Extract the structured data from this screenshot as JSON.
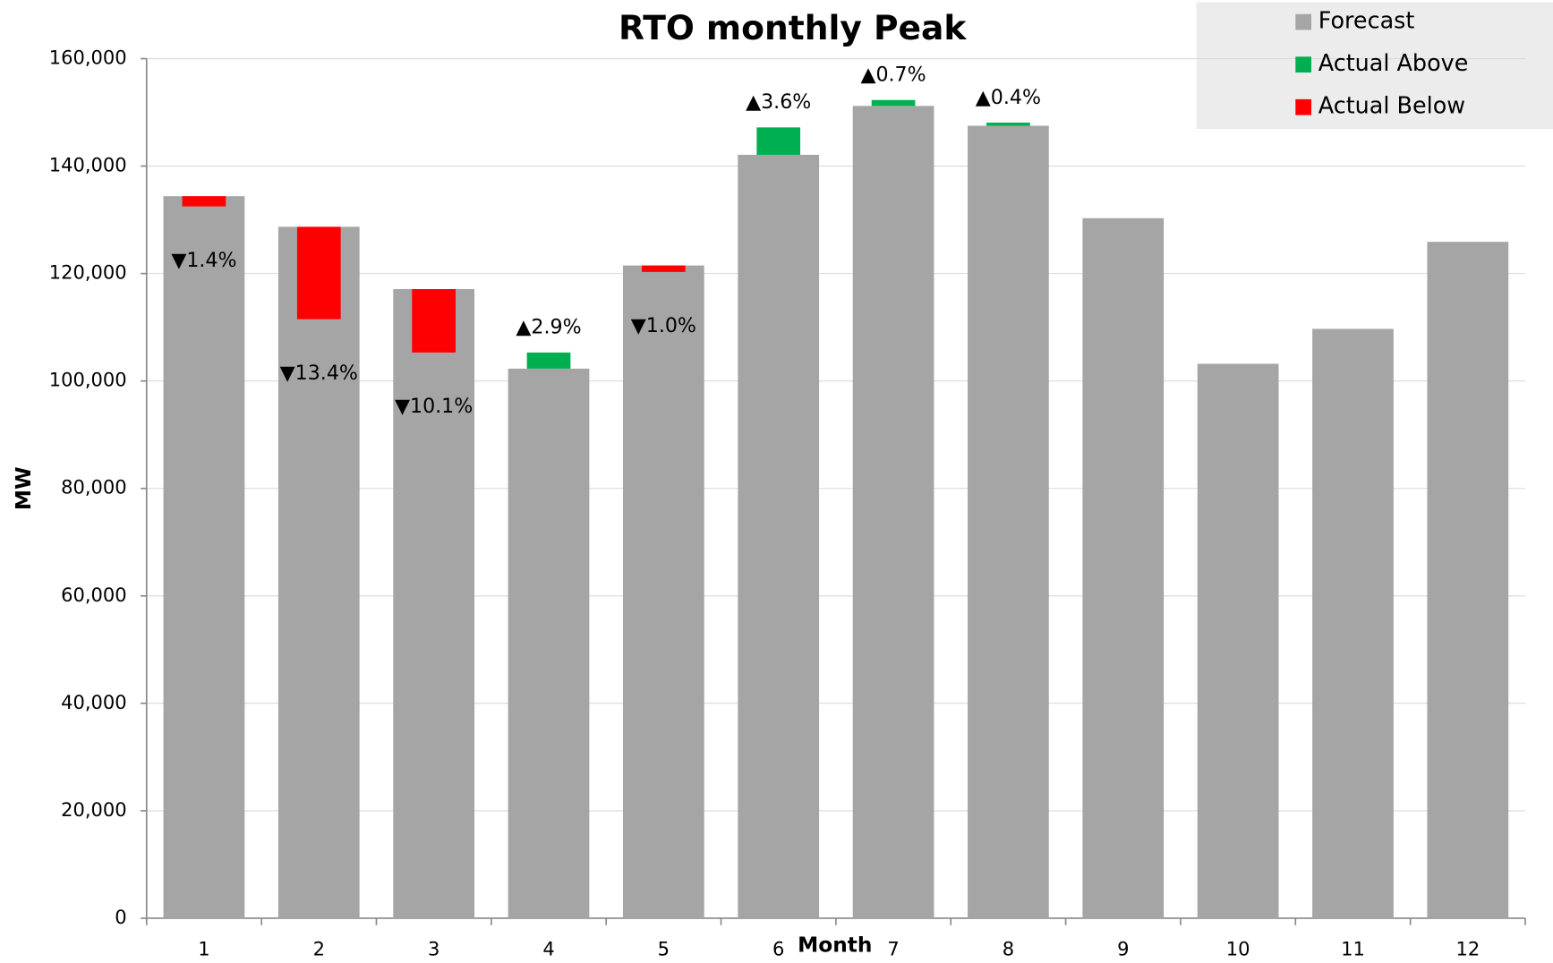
{
  "chart_data": {
    "type": "bar",
    "title": "RTO monthly Peak",
    "x_label": "Month",
    "y_label": "MW",
    "categories": [
      "1",
      "2",
      "3",
      "4",
      "5",
      "6",
      "7",
      "8",
      "9",
      "10",
      "11",
      "12"
    ],
    "series": [
      {
        "name": "Forecast",
        "color": "#a5a5a5",
        "values": [
          134400,
          128700,
          117100,
          102300,
          121500,
          142100,
          151200,
          147500,
          130300,
          103200,
          109700,
          125900
        ]
      },
      {
        "name": "Actual Above",
        "color": "#00b050",
        "values": [
          null,
          null,
          null,
          3000,
          null,
          5100,
          1100,
          600,
          null,
          null,
          null,
          null
        ]
      },
      {
        "name": "Actual Below",
        "color": "#ff0000",
        "values": [
          1900,
          17200,
          11800,
          null,
          1200,
          null,
          null,
          null,
          null,
          null,
          null,
          null
        ]
      }
    ],
    "annotations": [
      "▼1.4%",
      "▼13.4%",
      "▼10.1%",
      "▲2.9%",
      "▼1.0%",
      "▲3.6%",
      "▲0.7%",
      "▲0.4%",
      null,
      null,
      null,
      null
    ],
    "ylim": [
      0,
      160000
    ],
    "yticks": [
      0,
      {
        "value": 20000,
        "label": "20,000"
      },
      {
        "value": 40000,
        "label": "40,000"
      },
      {
        "value": 60000,
        "label": "60,000"
      },
      {
        "value": 80000,
        "label": "80,000"
      },
      {
        "value": 100000,
        "label": "100,000"
      },
      {
        "value": 120000,
        "label": "120,000"
      },
      {
        "value": 140000,
        "label": "140,000"
      },
      {
        "value": 160000,
        "label": "160,000"
      }
    ],
    "grid": true,
    "legend": "top-right"
  }
}
